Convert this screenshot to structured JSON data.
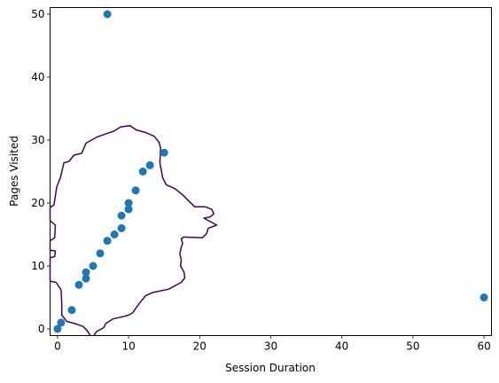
{
  "chart_data": {
    "type": "scatter",
    "title": "",
    "xlabel": "Session Duration",
    "ylabel": "Pages Visited",
    "xlim": [
      -1.05,
      61.05
    ],
    "ylim": [
      -1.05,
      51.05
    ],
    "xticks": [
      0,
      10,
      20,
      30,
      40,
      50,
      60
    ],
    "yticks": [
      0,
      10,
      20,
      30,
      40,
      50
    ],
    "grid": false,
    "legend": "none",
    "marker_color": "#1f77b4",
    "contour_color": "#440154",
    "points": [
      {
        "x": 0,
        "y": 0
      },
      {
        "x": 0.5,
        "y": 1
      },
      {
        "x": 2,
        "y": 3
      },
      {
        "x": 3,
        "y": 7
      },
      {
        "x": 4,
        "y": 8
      },
      {
        "x": 4,
        "y": 9
      },
      {
        "x": 5,
        "y": 10
      },
      {
        "x": 6,
        "y": 12
      },
      {
        "x": 7,
        "y": 14
      },
      {
        "x": 8,
        "y": 15
      },
      {
        "x": 9,
        "y": 16
      },
      {
        "x": 9,
        "y": 18
      },
      {
        "x": 10,
        "y": 19
      },
      {
        "x": 10,
        "y": 20
      },
      {
        "x": 11,
        "y": 22
      },
      {
        "x": 12,
        "y": 25
      },
      {
        "x": 13,
        "y": 26
      },
      {
        "x": 15,
        "y": 28
      },
      {
        "x": 7,
        "y": 50
      },
      {
        "x": 60,
        "y": 5
      }
    ],
    "contour": [
      [
        4.6,
        -1.05
      ],
      [
        4.2,
        -0.3
      ],
      [
        3.6,
        0.4
      ],
      [
        2.6,
        0.8
      ],
      [
        1.3,
        1.2
      ],
      [
        0.6,
        2.2
      ],
      [
        0.6,
        4.0
      ],
      [
        0.5,
        6.2
      ],
      [
        -0.2,
        7.4
      ],
      [
        -1.05,
        7.6
      ],
      [
        -1.05,
        11.3
      ],
      [
        -0.4,
        11.5
      ],
      [
        -0.3,
        12.4
      ],
      [
        -1.05,
        12.5
      ],
      [
        -1.05,
        14.0
      ],
      [
        -0.4,
        14.5
      ],
      [
        -0.3,
        16.5
      ],
      [
        -1.05,
        17.2
      ],
      [
        -1.05,
        19.3
      ],
      [
        -0.5,
        19.7
      ],
      [
        -0.1,
        22.6
      ],
      [
        0.4,
        24.0
      ],
      [
        0.9,
        26.4
      ],
      [
        1.6,
        26.6
      ],
      [
        2.3,
        27.6
      ],
      [
        3.4,
        27.9
      ],
      [
        4.0,
        29.5
      ],
      [
        5.6,
        30.5
      ],
      [
        6.8,
        31.0
      ],
      [
        7.9,
        31.4
      ],
      [
        8.9,
        32.1
      ],
      [
        10.2,
        32.3
      ],
      [
        11.1,
        31.6
      ],
      [
        12.4,
        31.2
      ],
      [
        13.6,
        30.6
      ],
      [
        14.3,
        29.6
      ],
      [
        14.5,
        28.7
      ],
      [
        14.4,
        26.4
      ],
      [
        14.8,
        24.0
      ],
      [
        15.3,
        22.9
      ],
      [
        16.5,
        22.3
      ],
      [
        17.6,
        21.3
      ],
      [
        18.4,
        20.4
      ],
      [
        19.3,
        19.4
      ],
      [
        20.8,
        19.4
      ],
      [
        21.7,
        19.0
      ],
      [
        22.0,
        18.3
      ],
      [
        21.5,
        17.8
      ],
      [
        20.6,
        17.6
      ],
      [
        22.4,
        16.5
      ],
      [
        21.2,
        16.0
      ],
      [
        21.0,
        15.2
      ],
      [
        20.4,
        14.5
      ],
      [
        17.7,
        14.6
      ],
      [
        17.4,
        14.3
      ],
      [
        17.6,
        13.6
      ],
      [
        17.4,
        13.0
      ],
      [
        17.2,
        11.9
      ],
      [
        17.4,
        11.0
      ],
      [
        17.3,
        10.0
      ],
      [
        17.5,
        9.6
      ],
      [
        17.8,
        9.0
      ],
      [
        17.9,
        8.1
      ],
      [
        17.4,
        7.4
      ],
      [
        16.4,
        6.8
      ],
      [
        15.6,
        6.3
      ],
      [
        13.4,
        5.8
      ],
      [
        12.4,
        5.3
      ],
      [
        11.4,
        3.9
      ],
      [
        10.6,
        2.6
      ],
      [
        10.0,
        2.2
      ],
      [
        9.4,
        2.0
      ],
      [
        7.8,
        1.6
      ],
      [
        6.8,
        0.9
      ],
      [
        6.5,
        0.2
      ],
      [
        5.5,
        -0.4
      ],
      [
        5.1,
        -1.05
      ]
    ]
  }
}
